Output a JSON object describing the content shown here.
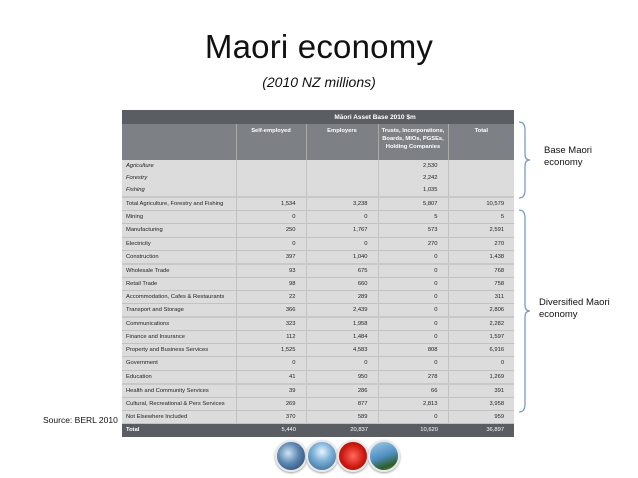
{
  "slide": {
    "title": "Maori economy",
    "subtitle": "(2010 NZ millions)",
    "source": "Source: BERL 2010"
  },
  "table": {
    "caption": "Māori Asset Base 2010 $m",
    "columns": [
      "Self-employed",
      "Employers",
      "Trusts, Incorporations, Boards, MIOs, PGSEs, Holding Companies",
      "Total"
    ],
    "rows": [
      {
        "label": "Agriculture",
        "values": [
          "",
          "",
          "2,530",
          ""
        ],
        "style": "italic"
      },
      {
        "label": "Forestry",
        "values": [
          "",
          "",
          "2,242",
          ""
        ],
        "style": "italic"
      },
      {
        "label": "Fishing",
        "values": [
          "",
          "",
          "1,035",
          ""
        ],
        "style": "italic"
      },
      {
        "label": "Total Agriculture, Forestry and Fishing",
        "values": [
          "1,534",
          "3,238",
          "5,807",
          "10,579"
        ],
        "style": "groupstart"
      },
      {
        "label": "Mining",
        "values": [
          "0",
          "0",
          "5",
          "5"
        ],
        "style": ""
      },
      {
        "label": "Manufacturing",
        "values": [
          "250",
          "1,767",
          "573",
          "2,591"
        ],
        "style": ""
      },
      {
        "label": "Electricity",
        "values": [
          "0",
          "0",
          "270",
          "270"
        ],
        "style": ""
      },
      {
        "label": "Construction",
        "values": [
          "397",
          "1,040",
          "0",
          "1,438"
        ],
        "style": ""
      },
      {
        "label": "Wholesale Trade",
        "values": [
          "93",
          "675",
          "0",
          "768"
        ],
        "style": "groupstart"
      },
      {
        "label": "Retail Trade",
        "values": [
          "98",
          "660",
          "0",
          "758"
        ],
        "style": ""
      },
      {
        "label": "Accommodation, Cafes & Restaurants",
        "values": [
          "22",
          "289",
          "0",
          "311"
        ],
        "style": ""
      },
      {
        "label": "Transport and Storage",
        "values": [
          "366",
          "2,439",
          "0",
          "2,806"
        ],
        "style": ""
      },
      {
        "label": "Communications",
        "values": [
          "323",
          "1,958",
          "0",
          "2,282"
        ],
        "style": "groupstart"
      },
      {
        "label": "Finance and Insurance",
        "values": [
          "112",
          "1,484",
          "0",
          "1,597"
        ],
        "style": ""
      },
      {
        "label": "Property and Business Services",
        "values": [
          "1,525",
          "4,583",
          "808",
          "6,916"
        ],
        "style": ""
      },
      {
        "label": "Government",
        "values": [
          "0",
          "0",
          "0",
          "0"
        ],
        "style": ""
      },
      {
        "label": "Education",
        "values": [
          "41",
          "950",
          "278",
          "1,269"
        ],
        "style": ""
      },
      {
        "label": "Health and Community Services",
        "values": [
          "39",
          "286",
          "66",
          "391"
        ],
        "style": "groupstart"
      },
      {
        "label": "Cultural, Recreational & Pers Services",
        "values": [
          "269",
          "877",
          "2,813",
          "3,958"
        ],
        "style": ""
      },
      {
        "label": "Not Elsewhere Included",
        "values": [
          "370",
          "589",
          "0",
          "959"
        ],
        "style": ""
      }
    ],
    "total": {
      "label": "Total",
      "values": [
        "5,440",
        "20,837",
        "10,620",
        "36,897"
      ]
    }
  },
  "annotations": {
    "base": "Base Maori economy",
    "diversified": "Diversified Maori economy"
  },
  "colors": {
    "header_dark": "#5a5d61",
    "header_mid": "#7d8085",
    "body_bg": "#dcdcdc"
  }
}
